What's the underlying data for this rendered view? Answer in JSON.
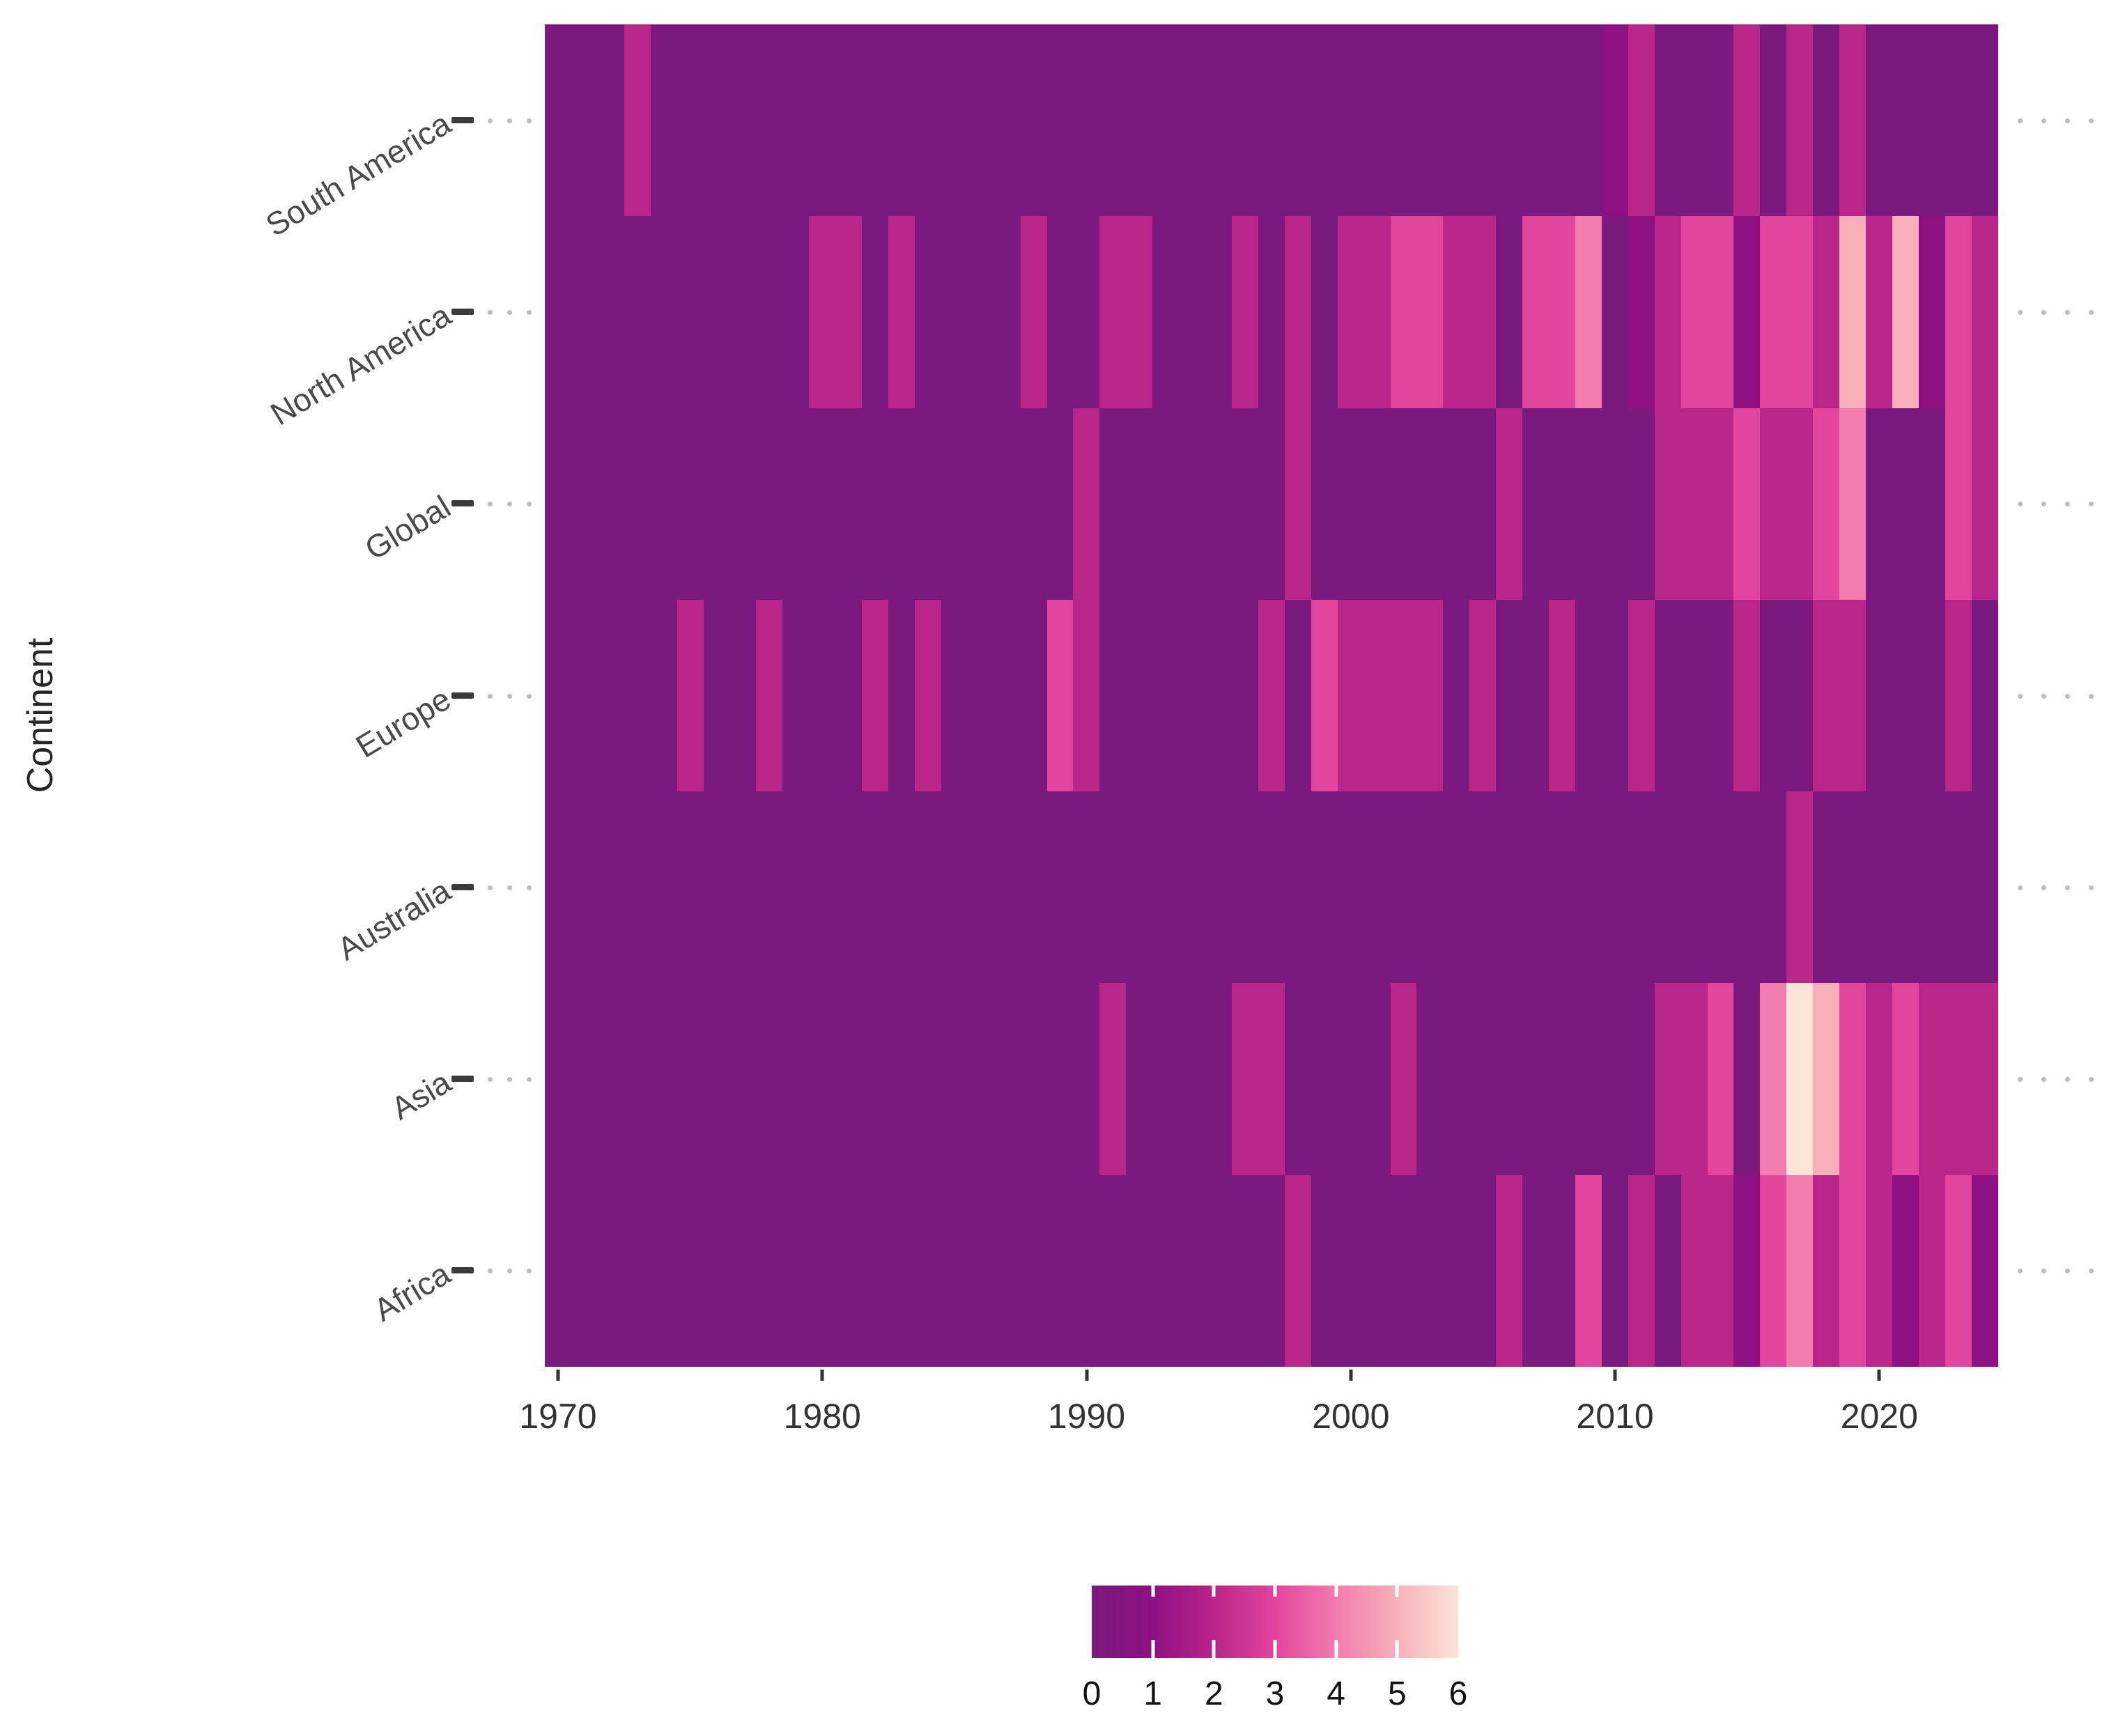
{
  "figure": {
    "y_axis_title": "Continent"
  },
  "colors": {
    "background": "#FFFFFF",
    "axis_label_text": "#4a4a4a",
    "tick_text": "#333333",
    "tick_mark": "#333333",
    "guide_dash": "#3b3b3b",
    "guide_dot": "#bdbdbd",
    "legend_tick": "#ffffff"
  },
  "chart_data": {
    "type": "heatmap",
    "title": "",
    "xlabel": "",
    "ylabel": "Continent",
    "x_start": 1970,
    "x_end": 2024,
    "x_ticks": [
      1970,
      1980,
      1990,
      2000,
      2010,
      2020
    ],
    "grid": false,
    "legend_position": "bottom-center",
    "rows_top_to_bottom": [
      "South America",
      "North America",
      "Global",
      "Europe",
      "Australia",
      "Asia",
      "Africa"
    ],
    "series": [
      {
        "name": "South America",
        "values": [
          0,
          0,
          0,
          2,
          0,
          0,
          0,
          0,
          0,
          0,
          0,
          0,
          0,
          0,
          0,
          0,
          0,
          0,
          0,
          0,
          0,
          0,
          0,
          0,
          0,
          0,
          0,
          0,
          0,
          0,
          0,
          0,
          0,
          0,
          0,
          0,
          0,
          0,
          0,
          0,
          1,
          2,
          0,
          0,
          0,
          2,
          0,
          2,
          0,
          2,
          0,
          0,
          0,
          0,
          0
        ]
      },
      {
        "name": "North America",
        "values": [
          0,
          0,
          0,
          0,
          0,
          0,
          0,
          0,
          0,
          0,
          2,
          2,
          0,
          2,
          0,
          0,
          0,
          0,
          2,
          0,
          0,
          2,
          2,
          0,
          0,
          0,
          2,
          0,
          2,
          0,
          2,
          2,
          3,
          3,
          2,
          2,
          0,
          3,
          3,
          4,
          0,
          1,
          2,
          3,
          3,
          1,
          3,
          3,
          2,
          5,
          2,
          5,
          1,
          3,
          2
        ]
      },
      {
        "name": "Global",
        "values": [
          0,
          0,
          0,
          0,
          0,
          0,
          0,
          0,
          0,
          0,
          0,
          0,
          0,
          0,
          0,
          0,
          0,
          0,
          0,
          0,
          2,
          0,
          0,
          0,
          0,
          0,
          0,
          0,
          2,
          0,
          0,
          0,
          0,
          0,
          0,
          0,
          2,
          0,
          0,
          0,
          0,
          0,
          2,
          2,
          2,
          3,
          2,
          2,
          3,
          4,
          0,
          0,
          0,
          3,
          2
        ]
      },
      {
        "name": "Europe",
        "values": [
          0,
          0,
          0,
          0,
          0,
          2,
          0,
          0,
          2,
          0,
          0,
          0,
          2,
          0,
          2,
          0,
          0,
          0,
          0,
          3,
          2,
          0,
          0,
          0,
          0,
          0,
          0,
          2,
          0,
          3,
          2,
          2,
          2,
          2,
          0,
          2,
          0,
          0,
          2,
          0,
          0,
          2,
          0,
          0,
          0,
          2,
          0,
          0,
          2,
          2,
          0,
          0,
          0,
          2,
          0
        ]
      },
      {
        "name": "Australia",
        "values": [
          0,
          0,
          0,
          0,
          0,
          0,
          0,
          0,
          0,
          0,
          0,
          0,
          0,
          0,
          0,
          0,
          0,
          0,
          0,
          0,
          0,
          0,
          0,
          0,
          0,
          0,
          0,
          0,
          0,
          0,
          0,
          0,
          0,
          0,
          0,
          0,
          0,
          0,
          0,
          0,
          0,
          0,
          0,
          0,
          0,
          0,
          0,
          2,
          0,
          0,
          0,
          0,
          0,
          0,
          0
        ]
      },
      {
        "name": "Asia",
        "values": [
          0,
          0,
          0,
          0,
          0,
          0,
          0,
          0,
          0,
          0,
          0,
          0,
          0,
          0,
          0,
          0,
          0,
          0,
          0,
          0,
          0,
          2,
          0,
          0,
          0,
          0,
          2,
          2,
          0,
          0,
          0,
          0,
          2,
          0,
          0,
          0,
          0,
          0,
          0,
          0,
          0,
          0,
          2,
          2,
          3,
          0,
          4,
          6,
          5,
          3,
          2,
          3,
          2,
          2,
          2
        ]
      },
      {
        "name": "Africa",
        "values": [
          0,
          0,
          0,
          0,
          0,
          0,
          0,
          0,
          0,
          0,
          0,
          0,
          0,
          0,
          0,
          0,
          0,
          0,
          0,
          0,
          0,
          0,
          0,
          0,
          0,
          0,
          0,
          0,
          2,
          0,
          0,
          0,
          0,
          0,
          0,
          0,
          2,
          0,
          0,
          3,
          0,
          2,
          0,
          2,
          2,
          1,
          3,
          4,
          2,
          3,
          2,
          1,
          2,
          3,
          1
        ]
      }
    ],
    "colorbar": {
      "min": 0,
      "max": 6,
      "tick_labels": [
        "0",
        "1",
        "2",
        "3",
        "4",
        "5",
        "6"
      ],
      "palette_stops": [
        "#7B1A7E",
        "#8E1083",
        "#B92589",
        "#E2459E",
        "#F27CAE",
        "#F8AFBA",
        "#FCE4D8"
      ]
    }
  }
}
